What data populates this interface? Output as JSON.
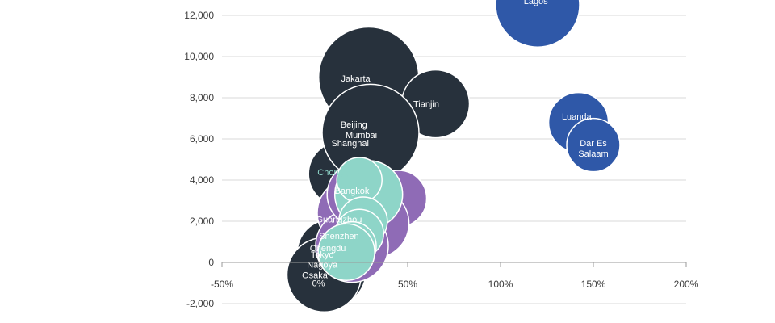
{
  "chart_data": {
    "type": "scatter",
    "title": "",
    "xlabel": "",
    "ylabel": "",
    "xlim": [
      -50,
      200
    ],
    "ylim": [
      -2000,
      12600
    ],
    "x_ticks": [
      -50,
      0,
      50,
      100,
      150,
      200
    ],
    "x_tick_labels": [
      "-50%",
      "0%",
      "50%",
      "100%",
      "150%",
      "200%"
    ],
    "y_ticks": [
      -2000,
      0,
      2000,
      4000,
      6000,
      8000,
      10000,
      12000
    ],
    "y_tick_labels": [
      "-2,000",
      "0",
      "2,000",
      "4,000",
      "6,000",
      "8,000",
      "10,000",
      "12,000"
    ],
    "grid": "horizontal",
    "colors": {
      "dark": "#27313c",
      "blue": "#2f58a8",
      "purple": "#8f6bb6",
      "teal": "#8ed5c8",
      "grid": "#d9d9d9",
      "axis": "#9a9a9a"
    },
    "bubbles": [
      {
        "label": "",
        "x": 29,
        "y": 9000,
        "r": 62,
        "group": "dark"
      },
      {
        "label": "",
        "x": 14,
        "y": 4300,
        "r": 40,
        "group": "dark"
      },
      {
        "label": "",
        "x": 8,
        "y": 500,
        "r": 40,
        "group": "dark"
      },
      {
        "label": "",
        "x": 10,
        "y": -500,
        "r": 40,
        "group": "dark"
      },
      {
        "label": "Osaka",
        "x": 5,
        "y": -600,
        "r": 46,
        "group": "dark"
      },
      {
        "label": "Tianjin",
        "x": 65,
        "y": 7700,
        "r": 42,
        "group": "dark"
      },
      {
        "label": "Beijing",
        "x": 30,
        "y": 6300,
        "r": 60,
        "group": "dark"
      },
      {
        "label": "",
        "x": 45,
        "y": 3100,
        "r": 35,
        "group": "purple"
      },
      {
        "label": "",
        "x": 32,
        "y": 1900,
        "r": 43,
        "group": "purple"
      },
      {
        "label": "",
        "x": 20,
        "y": 2400,
        "r": 43,
        "group": "purple"
      },
      {
        "label": "",
        "x": 20,
        "y": 800,
        "r": 45,
        "group": "purple"
      },
      {
        "label": "",
        "x": 24,
        "y": 3300,
        "r": 40,
        "group": "purple"
      },
      {
        "label": "Bangkok",
        "x": 29,
        "y": 3300,
        "r": 42,
        "group": "teal"
      },
      {
        "label": "Chongqing",
        "x": 24,
        "y": 4000,
        "r": 28,
        "group": "teal"
      },
      {
        "label": "Guangzhou",
        "x": 26,
        "y": 2000,
        "r": 30,
        "group": "teal"
      },
      {
        "label": "Shenzhen",
        "x": 24,
        "y": 1400,
        "r": 30,
        "group": "teal"
      },
      {
        "label": "Chengdu",
        "x": 20,
        "y": 800,
        "r": 30,
        "group": "teal"
      },
      {
        "label": "Tokyo",
        "x": 17,
        "y": 500,
        "r": 35,
        "group": "teal"
      },
      {
        "label": "Jakarta",
        "x": 48,
        "y": 9000,
        "r": 0,
        "group": "dark"
      },
      {
        "label": "Lagos",
        "x": 120,
        "y": 12500,
        "r": 52,
        "group": "blue"
      },
      {
        "label": "Luanda",
        "x": 142,
        "y": 6800,
        "r": 37,
        "group": "blue"
      },
      {
        "label": "Dar Es Salaam",
        "x": 150,
        "y": 5700,
        "r": 33,
        "group": "blue"
      }
    ],
    "labels": [
      {
        "text": "Lagos",
        "x": 119,
        "y": 12700,
        "color": "light"
      },
      {
        "text": "Jakarta",
        "x": 22,
        "y": 8950,
        "color": "light"
      },
      {
        "text": "Tianjin",
        "x": 60,
        "y": 7700,
        "color": "light"
      },
      {
        "text": "Beijing",
        "x": 21,
        "y": 6700,
        "color": "light"
      },
      {
        "text": "Mumbai",
        "x": 25,
        "y": 6200,
        "color": "light"
      },
      {
        "text": "Shanghai",
        "x": 19,
        "y": 5800,
        "color": "light"
      },
      {
        "text": "Chongqing",
        "x": 13,
        "y": 4400,
        "color": "teal"
      },
      {
        "text": "Bangkok",
        "x": 20,
        "y": 3500,
        "color": "dark"
      },
      {
        "text": "Guangzhou",
        "x": 13,
        "y": 2100,
        "color": "light"
      },
      {
        "text": "Shenzhen",
        "x": 13,
        "y": 1300,
        "color": "light"
      },
      {
        "text": "Chengdu",
        "x": 7,
        "y": 700,
        "color": "dark"
      },
      {
        "text": "Tokyo",
        "x": 4,
        "y": 400,
        "color": "dark"
      },
      {
        "text": "Nagoya",
        "x": 4,
        "y": -100,
        "color": "light"
      },
      {
        "text": "Osaka",
        "x": 0,
        "y": -600,
        "color": "light"
      },
      {
        "text": "0%",
        "x": 2,
        "y": -1000,
        "color": "light"
      },
      {
        "text": "Luanda",
        "x": 141,
        "y": 7100,
        "color": "light"
      },
      {
        "text": "Dar Es",
        "x": 150,
        "y": 5800,
        "color": "light"
      },
      {
        "text": "Salaam",
        "x": 150,
        "y": 5300,
        "color": "light"
      }
    ]
  }
}
